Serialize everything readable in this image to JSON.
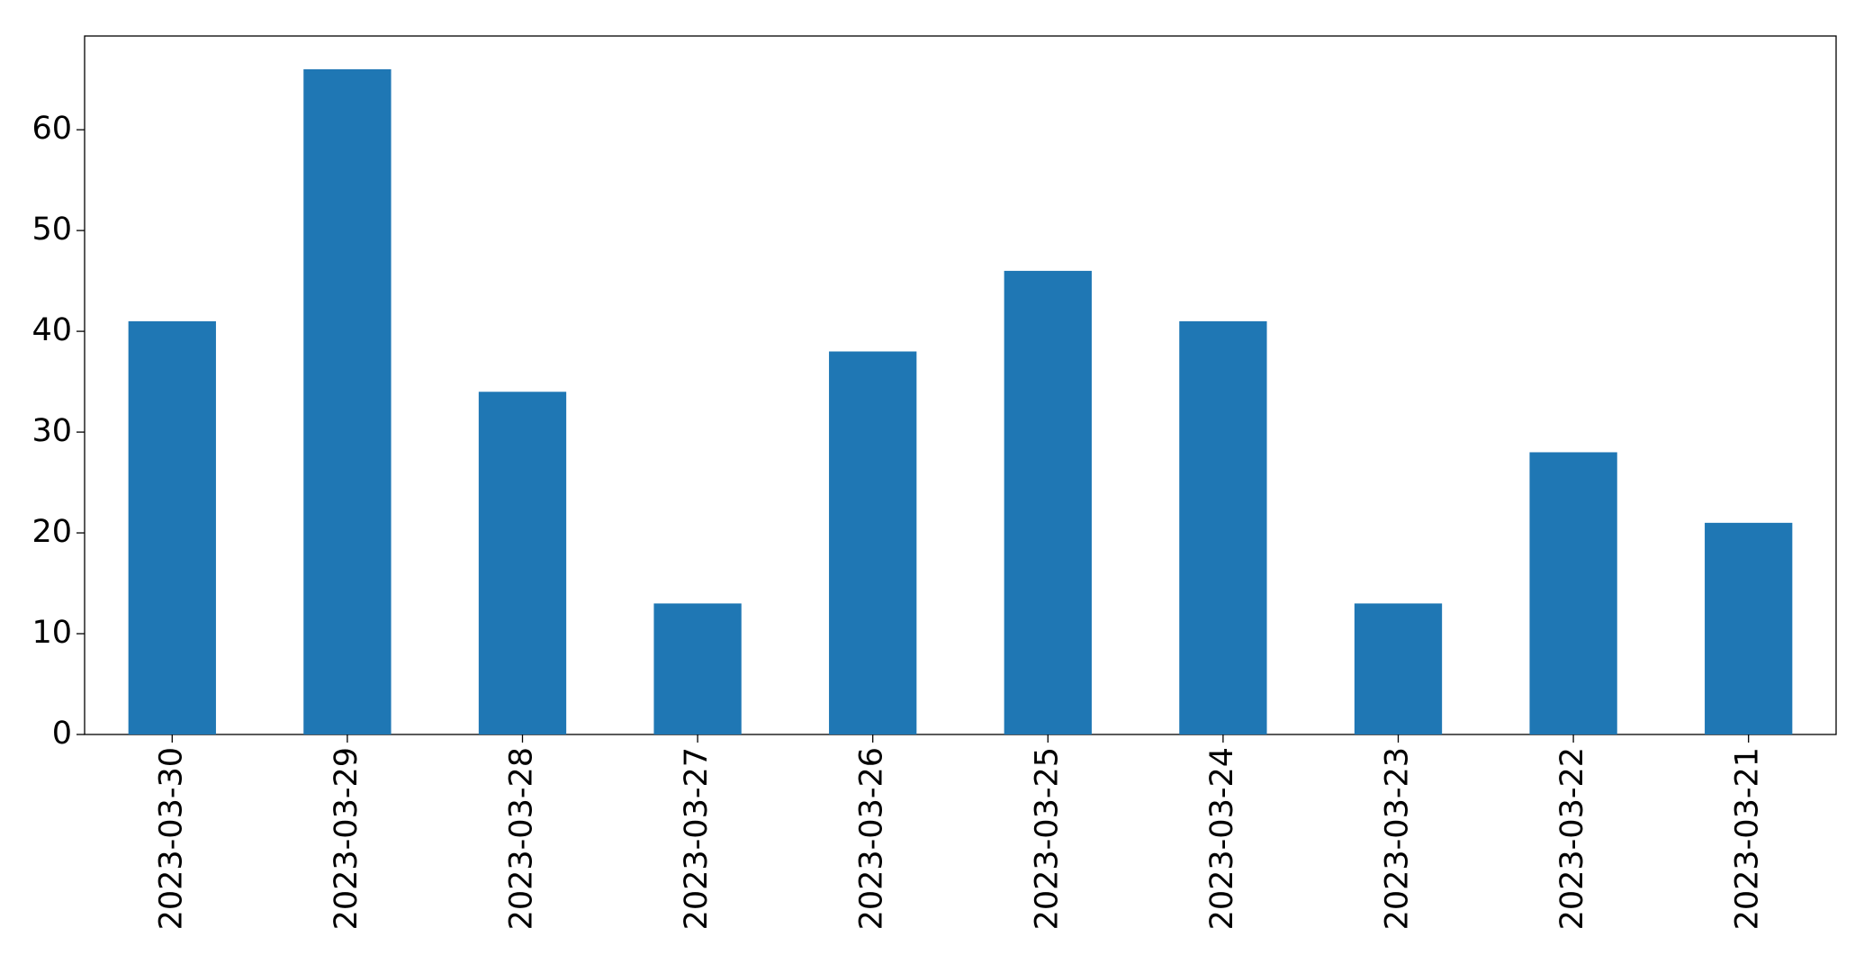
{
  "chart_data": {
    "type": "bar",
    "categories": [
      "2023-03-30",
      "2023-03-29",
      "2023-03-28",
      "2023-03-27",
      "2023-03-26",
      "2023-03-25",
      "2023-03-24",
      "2023-03-23",
      "2023-03-22",
      "2023-03-21"
    ],
    "values": [
      41,
      66,
      34,
      13,
      38,
      46,
      41,
      13,
      28,
      21
    ],
    "color": "#1f77b4",
    "ylim": [
      0,
      69.3
    ],
    "yticks": [
      0,
      10,
      20,
      30,
      40,
      50,
      60
    ],
    "grid": false
  }
}
